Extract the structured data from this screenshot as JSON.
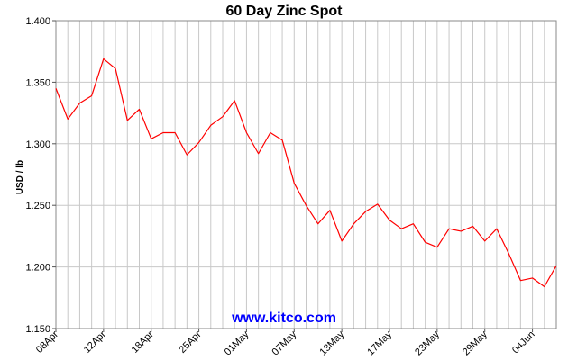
{
  "chart_data": {
    "type": "line",
    "title": "60 Day Zinc Spot",
    "xlabel": "",
    "ylabel": "USD / lb",
    "ylim": [
      1.15,
      1.4
    ],
    "yticks": [
      "1.400",
      "1.350",
      "1.300",
      "1.250",
      "1.200",
      "1.150"
    ],
    "ytick_values": [
      1.4,
      1.35,
      1.3,
      1.25,
      1.2,
      1.15
    ],
    "xtick_labels": [
      "08Apr",
      "12Apr",
      "18Apr",
      "25Apr",
      "01May",
      "07May",
      "13May",
      "17May",
      "23May",
      "29May",
      "04Jun"
    ],
    "xtick_indices": [
      0,
      4,
      8,
      12,
      16,
      20,
      24,
      28,
      32,
      36,
      40
    ],
    "grid": true,
    "line_color": "#ff0000",
    "grid_color": "#c8c8c8",
    "series": [
      {
        "values": [
          1.345,
          1.32,
          1.333,
          1.339,
          1.369,
          1.361,
          1.319,
          1.328,
          1.304,
          1.309,
          1.309,
          1.291,
          1.301,
          1.315,
          1.322,
          1.335,
          1.309,
          1.292,
          1.309,
          1.303,
          1.268,
          1.25,
          1.235,
          1.246,
          1.221,
          1.235,
          1.245,
          1.251,
          1.238,
          1.231,
          1.235,
          1.22,
          1.216,
          1.231,
          1.229,
          1.233,
          1.221,
          1.231,
          1.211,
          1.189,
          1.191,
          1.184,
          1.201
        ]
      }
    ]
  },
  "watermark": {
    "text": "www.kitco.com",
    "color": "#0000ff"
  }
}
